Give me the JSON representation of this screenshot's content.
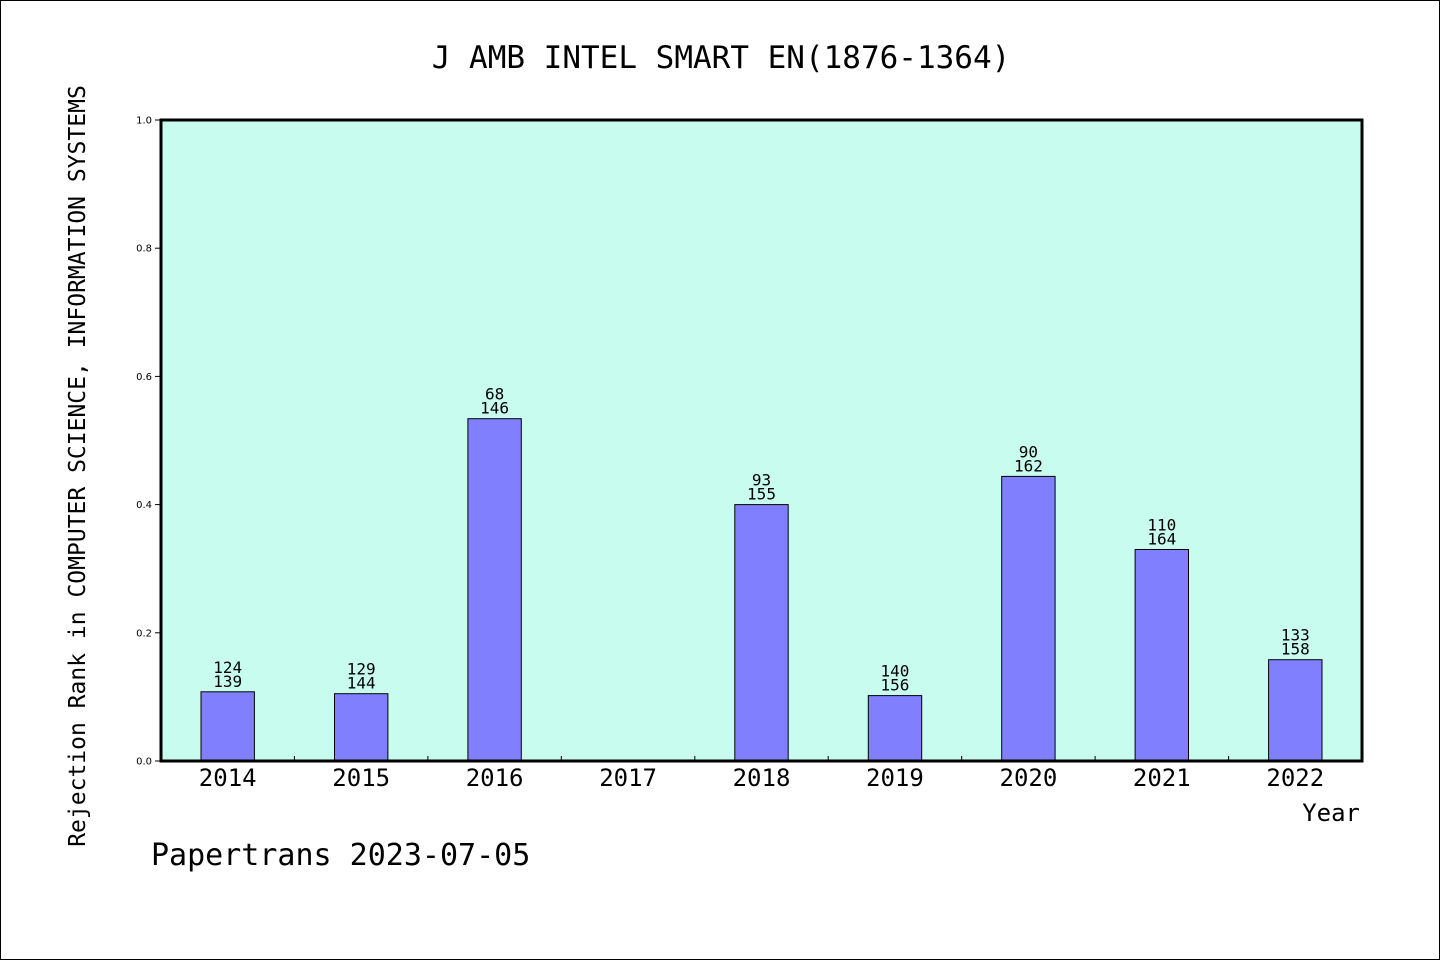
{
  "chart_data": {
    "type": "bar",
    "title": "J AMB INTEL SMART EN(1876-1364)",
    "xlabel": "Year",
    "ylabel": "Rejection Rank in COMPUTER SCIENCE, INFORMATION SYSTEMS",
    "ylim": [
      0,
      1.0
    ],
    "yticks": [
      "0.0",
      "0.2",
      "0.4",
      "0.6",
      "0.8",
      "1.0"
    ],
    "categories": [
      "2014",
      "2015",
      "2016",
      "2017",
      "2018",
      "2019",
      "2020",
      "2021",
      "2022"
    ],
    "values": [
      0.108,
      0.105,
      0.534,
      null,
      0.4,
      0.102,
      0.444,
      0.33,
      0.158
    ],
    "labels_top": [
      "124",
      "129",
      "68",
      "",
      "93",
      "140",
      "90",
      "110",
      "133"
    ],
    "labels_bottom": [
      "139",
      "144",
      "146",
      "",
      "155",
      "156",
      "162",
      "164",
      "158"
    ],
    "plot_background": "#c8fcef",
    "bar_color": "#8080ff",
    "grid": false
  },
  "footer": "Papertrans 2023-07-05"
}
